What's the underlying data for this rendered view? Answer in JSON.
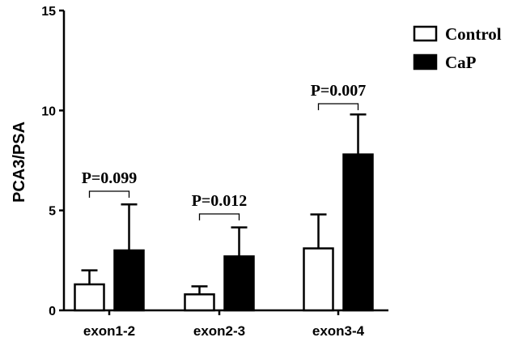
{
  "chart_data": {
    "type": "bar",
    "ylabel": "PCA3/PSA",
    "xlabel": "",
    "ylim": [
      0,
      15
    ],
    "yticks": [
      0,
      5,
      10,
      15
    ],
    "categories": [
      "exon1-2",
      "exon2-3",
      "exon3-4"
    ],
    "series": [
      {
        "name": "Control",
        "values": [
          1.3,
          0.8,
          3.1
        ],
        "errors": [
          0.7,
          0.4,
          1.7
        ],
        "color": "#ffffff"
      },
      {
        "name": "CaP",
        "values": [
          3.0,
          2.7,
          7.8
        ],
        "errors": [
          2.3,
          1.45,
          2.0
        ],
        "color": "#000000"
      }
    ],
    "annotations": [
      {
        "category": "exon1-2",
        "text": "P=0.099"
      },
      {
        "category": "exon2-3",
        "text": "P=0.012"
      },
      {
        "category": "exon3-4",
        "text": "P=0.007"
      }
    ],
    "legend": "top-right",
    "grid": false
  }
}
